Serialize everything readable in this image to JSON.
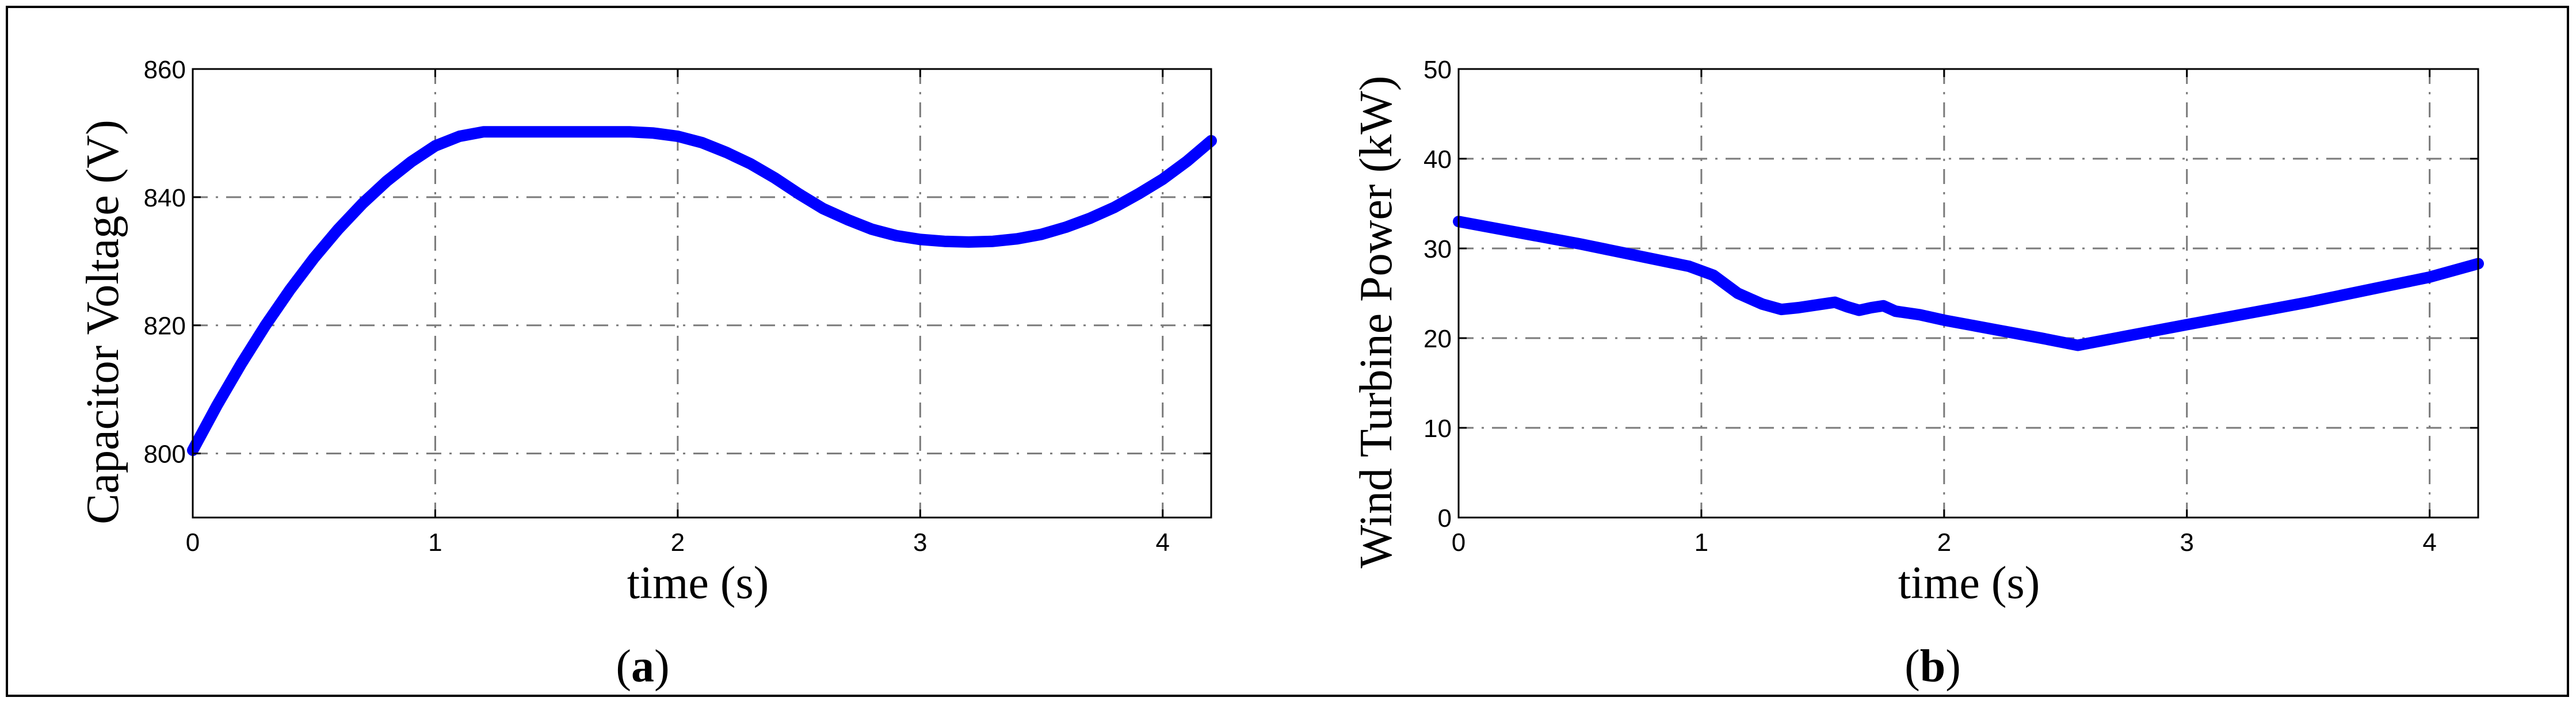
{
  "chart_data": [
    {
      "type": "line",
      "panel": "a",
      "xlabel": "time (s)",
      "ylabel": "Capacitor Voltage (V)",
      "xlim": [
        0,
        4.2
      ],
      "ylim": [
        790,
        860
      ],
      "xticks": [
        0,
        1,
        2,
        3,
        4
      ],
      "yticks": [
        800,
        820,
        840,
        860
      ],
      "grid": true,
      "line_color": "#0000ff",
      "x": [
        0,
        0.1,
        0.2,
        0.3,
        0.4,
        0.5,
        0.6,
        0.7,
        0.8,
        0.9,
        1.0,
        1.1,
        1.2,
        1.5,
        1.8,
        1.9,
        2.0,
        2.1,
        2.2,
        2.3,
        2.4,
        2.5,
        2.6,
        2.7,
        2.8,
        2.9,
        3.0,
        3.1,
        3.2,
        3.3,
        3.4,
        3.5,
        3.6,
        3.7,
        3.8,
        3.9,
        4.0,
        4.1,
        4.2
      ],
      "y": [
        800.5,
        807.5,
        814,
        820,
        825.5,
        830.5,
        835,
        839,
        842.5,
        845.5,
        848,
        849.5,
        850.2,
        850.2,
        850.2,
        850,
        849.5,
        848.5,
        847,
        845.2,
        843,
        840.5,
        838.2,
        836.5,
        835,
        834,
        833.4,
        833.1,
        833,
        833.1,
        833.5,
        834.2,
        835.3,
        836.7,
        838.4,
        840.5,
        842.8,
        845.6,
        848.8
      ],
      "caption_letter": "a"
    },
    {
      "type": "line",
      "panel": "b",
      "xlabel": "time (s)",
      "ylabel": "Wind Turbine Power (kW)",
      "xlim": [
        0,
        4.2
      ],
      "ylim": [
        0,
        50
      ],
      "xticks": [
        0,
        1,
        2,
        3,
        4
      ],
      "yticks": [
        0,
        10,
        20,
        30,
        40,
        50
      ],
      "grid": true,
      "line_color": "#0000ff",
      "x": [
        0,
        0.5,
        0.95,
        1.05,
        1.15,
        1.25,
        1.33,
        1.4,
        1.5,
        1.55,
        1.6,
        1.65,
        1.7,
        1.75,
        1.8,
        1.9,
        2.0,
        2.2,
        2.4,
        2.55,
        3.0,
        3.5,
        4.0,
        4.2
      ],
      "y": [
        33,
        30.5,
        28,
        27,
        25,
        23.8,
        23.2,
        23.4,
        23.8,
        24,
        23.5,
        23.1,
        23.4,
        23.6,
        23,
        22.6,
        22,
        21,
        20,
        19.2,
        21.5,
        24,
        26.8,
        28.3
      ],
      "caption_letter": "b"
    }
  ],
  "captions": {
    "a_open": "(",
    "a_letter": "a",
    "a_close": ")",
    "b_open": "(",
    "b_letter": "b",
    "b_close": ")"
  }
}
